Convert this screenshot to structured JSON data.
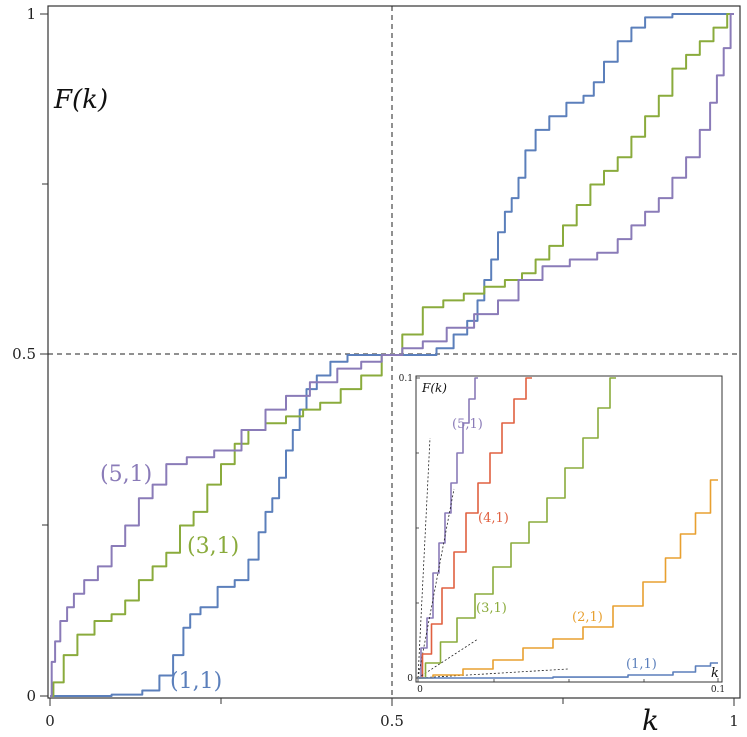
{
  "chart_data": [
    {
      "type": "line",
      "ylabel": "F(k)",
      "xlabel": "k",
      "xlim": [
        0,
        1
      ],
      "ylim": [
        0,
        1
      ],
      "xticks": [
        "0",
        "0.5",
        "1"
      ],
      "yticks": [
        "0",
        "0.5",
        "1"
      ],
      "grid": false,
      "reference_lines": [
        {
          "orientation": "vertical",
          "value": 0.5,
          "style": "dashed"
        },
        {
          "orientation": "horizontal",
          "value": 0.5,
          "style": "dashed"
        }
      ],
      "series": [
        {
          "name": "(1,1)",
          "color": "#5b7fbb",
          "points": [
            [
              0,
              0
            ],
            [
              0.06,
              0
            ],
            [
              0.12,
              0.002
            ],
            [
              0.15,
              0.008
            ],
            [
              0.17,
              0.03
            ],
            [
              0.19,
              0.06
            ],
            [
              0.2,
              0.1
            ],
            [
              0.21,
              0.12
            ],
            [
              0.23,
              0.13
            ],
            [
              0.26,
              0.16
            ],
            [
              0.28,
              0.17
            ],
            [
              0.3,
              0.2
            ],
            [
              0.31,
              0.24
            ],
            [
              0.32,
              0.27
            ],
            [
              0.33,
              0.29
            ],
            [
              0.34,
              0.32
            ],
            [
              0.35,
              0.36
            ],
            [
              0.36,
              0.39
            ],
            [
              0.37,
              0.42
            ],
            [
              0.38,
              0.45
            ],
            [
              0.4,
              0.47
            ],
            [
              0.42,
              0.49
            ],
            [
              0.45,
              0.5
            ],
            [
              0.5,
              0.5
            ],
            [
              0.55,
              0.5
            ],
            [
              0.58,
              0.51
            ],
            [
              0.6,
              0.53
            ],
            [
              0.62,
              0.55
            ],
            [
              0.63,
              0.58
            ],
            [
              0.64,
              0.61
            ],
            [
              0.65,
              0.64
            ],
            [
              0.66,
              0.68
            ],
            [
              0.67,
              0.71
            ],
            [
              0.68,
              0.73
            ],
            [
              0.69,
              0.76
            ],
            [
              0.7,
              0.8
            ],
            [
              0.72,
              0.83
            ],
            [
              0.74,
              0.85
            ],
            [
              0.77,
              0.87
            ],
            [
              0.79,
              0.88
            ],
            [
              0.8,
              0.9
            ],
            [
              0.82,
              0.93
            ],
            [
              0.84,
              0.96
            ],
            [
              0.86,
              0.98
            ],
            [
              0.88,
              0.995
            ],
            [
              0.94,
              1
            ],
            [
              1,
              1
            ]
          ]
        },
        {
          "name": "(3,1)",
          "color": "#8aab3c",
          "points": [
            [
              0,
              0
            ],
            [
              0.01,
              0.02
            ],
            [
              0.03,
              0.06
            ],
            [
              0.05,
              0.09
            ],
            [
              0.08,
              0.11
            ],
            [
              0.1,
              0.12
            ],
            [
              0.12,
              0.14
            ],
            [
              0.14,
              0.17
            ],
            [
              0.16,
              0.19
            ],
            [
              0.18,
              0.21
            ],
            [
              0.2,
              0.25
            ],
            [
              0.22,
              0.27
            ],
            [
              0.24,
              0.31
            ],
            [
              0.26,
              0.34
            ],
            [
              0.28,
              0.37
            ],
            [
              0.3,
              0.39
            ],
            [
              0.33,
              0.4
            ],
            [
              0.36,
              0.41
            ],
            [
              0.38,
              0.42
            ],
            [
              0.41,
              0.43
            ],
            [
              0.44,
              0.45
            ],
            [
              0.47,
              0.47
            ],
            [
              0.5,
              0.5
            ],
            [
              0.53,
              0.53
            ],
            [
              0.56,
              0.57
            ],
            [
              0.59,
              0.58
            ],
            [
              0.62,
              0.59
            ],
            [
              0.65,
              0.6
            ],
            [
              0.68,
              0.61
            ],
            [
              0.7,
              0.62
            ],
            [
              0.72,
              0.64
            ],
            [
              0.74,
              0.66
            ],
            [
              0.76,
              0.69
            ],
            [
              0.78,
              0.72
            ],
            [
              0.8,
              0.75
            ],
            [
              0.82,
              0.77
            ],
            [
              0.84,
              0.79
            ],
            [
              0.86,
              0.82
            ],
            [
              0.88,
              0.85
            ],
            [
              0.9,
              0.88
            ],
            [
              0.92,
              0.92
            ],
            [
              0.94,
              0.94
            ],
            [
              0.96,
              0.96
            ],
            [
              0.98,
              0.98
            ],
            [
              1,
              1
            ]
          ]
        },
        {
          "name": "(5,1)",
          "color": "#8a7bb8",
          "points": [
            [
              0,
              0
            ],
            [
              0.005,
              0.05
            ],
            [
              0.01,
              0.08
            ],
            [
              0.02,
              0.11
            ],
            [
              0.03,
              0.13
            ],
            [
              0.04,
              0.15
            ],
            [
              0.06,
              0.17
            ],
            [
              0.08,
              0.19
            ],
            [
              0.1,
              0.22
            ],
            [
              0.12,
              0.25
            ],
            [
              0.14,
              0.29
            ],
            [
              0.16,
              0.31
            ],
            [
              0.18,
              0.34
            ],
            [
              0.22,
              0.35
            ],
            [
              0.26,
              0.36
            ],
            [
              0.3,
              0.39
            ],
            [
              0.33,
              0.42
            ],
            [
              0.36,
              0.44
            ],
            [
              0.4,
              0.46
            ],
            [
              0.44,
              0.48
            ],
            [
              0.47,
              0.49
            ],
            [
              0.5,
              0.5
            ],
            [
              0.53,
              0.51
            ],
            [
              0.56,
              0.52
            ],
            [
              0.6,
              0.54
            ],
            [
              0.64,
              0.56
            ],
            [
              0.67,
              0.58
            ],
            [
              0.7,
              0.61
            ],
            [
              0.74,
              0.63
            ],
            [
              0.78,
              0.64
            ],
            [
              0.82,
              0.65
            ],
            [
              0.84,
              0.67
            ],
            [
              0.86,
              0.69
            ],
            [
              0.88,
              0.71
            ],
            [
              0.9,
              0.73
            ],
            [
              0.92,
              0.76
            ],
            [
              0.94,
              0.79
            ],
            [
              0.96,
              0.83
            ],
            [
              0.97,
              0.87
            ],
            [
              0.98,
              0.91
            ],
            [
              0.99,
              0.95
            ],
            [
              1,
              1
            ]
          ]
        }
      ],
      "annotations": [
        "(1,1)",
        "(3,1)",
        "(5,1)"
      ]
    },
    {
      "type": "line",
      "ylabel": "F(k)",
      "xlabel": "k",
      "xlim": [
        0,
        0.1
      ],
      "ylim": [
        0,
        0.1
      ],
      "xticks": [
        "0",
        "0.1"
      ],
      "yticks": [
        "0",
        "0.1"
      ],
      "grid": false,
      "series": [
        {
          "name": "(5,1)",
          "color": "#8a7bb8",
          "points": [
            [
              0,
              0
            ],
            [
              0.002,
              0.01
            ],
            [
              0.004,
              0.02
            ],
            [
              0.006,
              0.035
            ],
            [
              0.008,
              0.045
            ],
            [
              0.01,
              0.055
            ],
            [
              0.012,
              0.065
            ],
            [
              0.014,
              0.075
            ],
            [
              0.016,
              0.085
            ],
            [
              0.018,
              0.093
            ],
            [
              0.02,
              0.1
            ]
          ],
          "asymptote": [
            [
              0,
              0
            ],
            [
              0.004,
              0.08
            ]
          ]
        },
        {
          "name": "(4,1)",
          "color": "#e06040",
          "points": [
            [
              0,
              0
            ],
            [
              0.003,
              0.008
            ],
            [
              0.006,
              0.018
            ],
            [
              0.01,
              0.03
            ],
            [
              0.014,
              0.042
            ],
            [
              0.018,
              0.055
            ],
            [
              0.022,
              0.065
            ],
            [
              0.026,
              0.075
            ],
            [
              0.03,
              0.085
            ],
            [
              0.034,
              0.093
            ],
            [
              0.038,
              0.1
            ]
          ],
          "asymptote": [
            [
              0,
              0
            ],
            [
              0.012,
              0.063
            ]
          ]
        },
        {
          "name": "(3,1)",
          "color": "#8aab3c",
          "points": [
            [
              0,
              0
            ],
            [
              0.005,
              0.005
            ],
            [
              0.01,
              0.012
            ],
            [
              0.016,
              0.02
            ],
            [
              0.022,
              0.028
            ],
            [
              0.028,
              0.037
            ],
            [
              0.034,
              0.045
            ],
            [
              0.04,
              0.052
            ],
            [
              0.046,
              0.06
            ],
            [
              0.052,
              0.07
            ],
            [
              0.058,
              0.08
            ],
            [
              0.062,
              0.09
            ],
            [
              0.066,
              0.1
            ]
          ],
          "asymptote": [
            [
              0,
              0
            ],
            [
              0.02,
              0.013
            ]
          ]
        },
        {
          "name": "(2,1)",
          "color": "#e8a030",
          "points": [
            [
              0,
              0
            ],
            [
              0.01,
              0.001
            ],
            [
              0.02,
              0.003
            ],
            [
              0.03,
              0.006
            ],
            [
              0.04,
              0.01
            ],
            [
              0.05,
              0.013
            ],
            [
              0.06,
              0.017
            ],
            [
              0.07,
              0.024
            ],
            [
              0.08,
              0.032
            ],
            [
              0.085,
              0.04
            ],
            [
              0.09,
              0.048
            ],
            [
              0.095,
              0.055
            ],
            [
              0.1,
              0.066
            ]
          ],
          "asymptote": [
            [
              0,
              0
            ],
            [
              0.05,
              0.003
            ]
          ]
        },
        {
          "name": "(1,1)",
          "color": "#5b7fbb",
          "points": [
            [
              0,
              0
            ],
            [
              0.03,
              0
            ],
            [
              0.06,
              0.0003
            ],
            [
              0.08,
              0.001
            ],
            [
              0.09,
              0.002
            ],
            [
              0.095,
              0.004
            ],
            [
              0.1,
              0.005
            ]
          ]
        }
      ],
      "annotations": [
        "(5,1)",
        "(4,1)",
        "(3,1)",
        "(2,1)",
        "(1,1)"
      ]
    }
  ]
}
